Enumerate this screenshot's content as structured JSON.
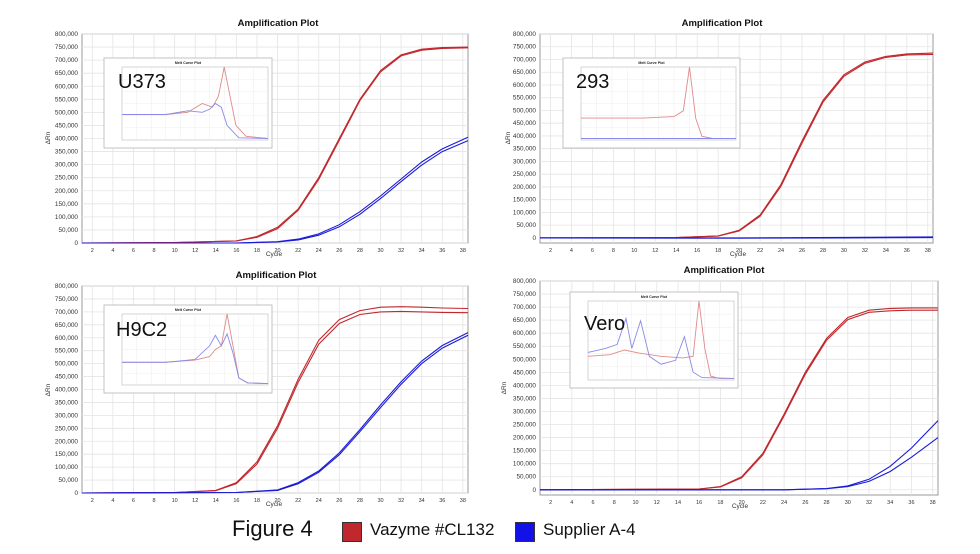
{
  "figure": {
    "label": "Figure 4",
    "legend": [
      {
        "name": "Vazyme #CL132",
        "color": "#c0282d"
      },
      {
        "name": "Supplier A-4",
        "color": "#1212e8"
      }
    ]
  },
  "chart_data": [
    {
      "type": "line",
      "title": "Amplification Plot",
      "xlabel": "Cycle",
      "ylabel": "ΔRn",
      "xlim": [
        1,
        38.5
      ],
      "ylim": [
        0,
        800000
      ],
      "xticks": [
        2,
        4,
        6,
        8,
        10,
        12,
        14,
        16,
        18,
        20,
        22,
        24,
        26,
        28,
        30,
        32,
        34,
        36,
        38
      ],
      "yticks": [
        0,
        50000,
        100000,
        150000,
        200000,
        250000,
        300000,
        350000,
        400000,
        450000,
        500000,
        550000,
        600000,
        650000,
        700000,
        750000,
        800000
      ],
      "ytick_labels": [
        "0",
        "50,000",
        "100,000",
        "150,000",
        "200,000",
        "250,000",
        "300,000",
        "350,000",
        "400,000",
        "450,000",
        "500,000",
        "550,000",
        "600,000",
        "650,000",
        "700,000",
        "750,000",
        "800,000"
      ],
      "grid": true,
      "sample_label": "U373",
      "series": [
        {
          "color_key": "red",
          "x": [
            1,
            10,
            16,
            18,
            20,
            22,
            24,
            26,
            28,
            30,
            32,
            34,
            36,
            38.5
          ],
          "y": [
            0,
            2000,
            8000,
            25000,
            60000,
            130000,
            250000,
            400000,
            550000,
            660000,
            720000,
            742000,
            748000,
            750000
          ]
        },
        {
          "color_key": "red",
          "x": [
            1,
            10,
            16,
            18,
            20,
            22,
            24,
            26,
            28,
            30,
            32,
            34,
            36,
            38.5
          ],
          "y": [
            0,
            2000,
            8000,
            22000,
            55000,
            125000,
            243000,
            393000,
            545000,
            655000,
            716000,
            738000,
            745000,
            747000
          ]
        },
        {
          "color_key": "blue",
          "x": [
            1,
            16,
            20,
            22,
            24,
            26,
            28,
            30,
            32,
            34,
            36,
            38.5
          ],
          "y": [
            0,
            0,
            5000,
            15000,
            35000,
            70000,
            120000,
            180000,
            245000,
            310000,
            360000,
            405000
          ]
        },
        {
          "color_key": "blue",
          "x": [
            1,
            16,
            20,
            22,
            24,
            26,
            28,
            30,
            32,
            34,
            36,
            38.5
          ],
          "y": [
            0,
            0,
            4000,
            12000,
            30000,
            62000,
            110000,
            170000,
            235000,
            298000,
            350000,
            392000
          ]
        }
      ],
      "inset": {
        "title": "Melt Curve Plot",
        "series": [
          {
            "color_key": "red",
            "x": [
              0,
              0.3,
              0.45,
              0.55,
              0.62,
              0.66,
              0.7,
              0.74,
              0.78,
              0.85,
              1
            ],
            "y": [
              0.35,
              0.35,
              0.38,
              0.5,
              0.45,
              0.6,
              1.0,
              0.6,
              0.2,
              0.05,
              0.02
            ]
          },
          {
            "color_key": "blue",
            "x": [
              0,
              0.3,
              0.45,
              0.55,
              0.6,
              0.64,
              0.68,
              0.72,
              0.8,
              1
            ],
            "y": [
              0.35,
              0.35,
              0.4,
              0.38,
              0.42,
              0.5,
              0.45,
              0.2,
              0.03,
              0.02
            ]
          }
        ]
      }
    },
    {
      "type": "line",
      "title": "Amplification Plot",
      "xlabel": "Cycle",
      "ylabel": "ΔRn",
      "xlim": [
        1,
        38.5
      ],
      "ylim": [
        -20000,
        800000
      ],
      "xticks": [
        2,
        4,
        6,
        8,
        10,
        12,
        14,
        16,
        18,
        20,
        22,
        24,
        26,
        28,
        30,
        32,
        34,
        36,
        38
      ],
      "yticks": [
        0,
        50000,
        100000,
        150000,
        200000,
        250000,
        300000,
        350000,
        400000,
        450000,
        500000,
        550000,
        600000,
        650000,
        700000,
        750000,
        800000
      ],
      "ytick_labels": [
        "0",
        "50,000",
        "100,000",
        "150,000",
        "200,000",
        "250,000",
        "300,000",
        "350,000",
        "400,000",
        "450,000",
        "500,000",
        "550,000",
        "600,000",
        "650,000",
        "700,000",
        "750,000",
        "800,000"
      ],
      "grid": true,
      "sample_label": "293",
      "series": [
        {
          "color_key": "red",
          "x": [
            1,
            14,
            18,
            20,
            22,
            24,
            26,
            28,
            30,
            32,
            34,
            36,
            38.5
          ],
          "y": [
            0,
            1000,
            8000,
            30000,
            90000,
            210000,
            380000,
            540000,
            640000,
            690000,
            712000,
            722000,
            725000
          ]
        },
        {
          "color_key": "red",
          "x": [
            1,
            14,
            18,
            20,
            22,
            24,
            26,
            28,
            30,
            32,
            34,
            36,
            38.5
          ],
          "y": [
            0,
            1000,
            7000,
            27000,
            85000,
            203000,
            372000,
            533000,
            634000,
            685000,
            708000,
            718000,
            720000
          ]
        },
        {
          "color_key": "blue",
          "x": [
            1,
            20,
            30,
            38.5
          ],
          "y": [
            0,
            0,
            2000,
            4000
          ]
        },
        {
          "color_key": "blue",
          "x": [
            1,
            20,
            30,
            38.5
          ],
          "y": [
            0,
            -1000,
            0,
            1000
          ]
        }
      ],
      "inset": {
        "title": "Melt Curve Plot",
        "series": [
          {
            "color_key": "red",
            "x": [
              0,
              0.4,
              0.6,
              0.66,
              0.7,
              0.74,
              0.78,
              0.85,
              1
            ],
            "y": [
              0.3,
              0.3,
              0.32,
              0.4,
              1.0,
              0.3,
              0.05,
              0.02,
              0.02
            ]
          },
          {
            "color_key": "blue",
            "x": [
              0,
              0.5,
              1
            ],
            "y": [
              0.02,
              0.02,
              0.02
            ]
          }
        ]
      }
    },
    {
      "type": "line",
      "title": "Amplification Plot",
      "xlabel": "Cycle",
      "ylabel": "ΔRn",
      "xlim": [
        1,
        38.5
      ],
      "ylim": [
        0,
        800000
      ],
      "xticks": [
        2,
        4,
        6,
        8,
        10,
        12,
        14,
        16,
        18,
        20,
        22,
        24,
        26,
        28,
        30,
        32,
        34,
        36,
        38
      ],
      "yticks": [
        0,
        50000,
        100000,
        150000,
        200000,
        250000,
        300000,
        350000,
        400000,
        450000,
        500000,
        550000,
        600000,
        650000,
        700000,
        750000,
        800000
      ],
      "ytick_labels": [
        "0",
        "50,000",
        "100,000",
        "150,000",
        "200,000",
        "250,000",
        "300,000",
        "350,000",
        "400,000",
        "450,000",
        "500,000",
        "550,000",
        "600,000",
        "650,000",
        "700,000",
        "750,000",
        "800,000"
      ],
      "grid": true,
      "sample_label": "H9C2",
      "series": [
        {
          "color_key": "red",
          "x": [
            1,
            10,
            14,
            16,
            18,
            20,
            22,
            24,
            26,
            28,
            30,
            32,
            34,
            36,
            38.5
          ],
          "y": [
            0,
            2000,
            10000,
            40000,
            120000,
            260000,
            440000,
            590000,
            670000,
            705000,
            718000,
            720000,
            718000,
            715000,
            713000
          ]
        },
        {
          "color_key": "red",
          "x": [
            1,
            10,
            14,
            16,
            18,
            20,
            22,
            24,
            26,
            28,
            30,
            32,
            34,
            36,
            38.5
          ],
          "y": [
            0,
            2000,
            9000,
            36000,
            112000,
            250000,
            428000,
            575000,
            655000,
            690000,
            700000,
            702000,
            700000,
            698000,
            697000
          ]
        },
        {
          "color_key": "blue",
          "x": [
            1,
            16,
            20,
            22,
            24,
            26,
            28,
            30,
            32,
            34,
            36,
            38.5
          ],
          "y": [
            0,
            2000,
            12000,
            40000,
            85000,
            155000,
            245000,
            340000,
            430000,
            510000,
            570000,
            620000
          ]
        },
        {
          "color_key": "blue",
          "x": [
            1,
            16,
            20,
            22,
            24,
            26,
            28,
            30,
            32,
            34,
            36,
            38.5
          ],
          "y": [
            0,
            2000,
            10000,
            36000,
            80000,
            148000,
            237000,
            330000,
            420000,
            500000,
            560000,
            610000
          ]
        }
      ],
      "inset": {
        "title": "Melt Curve Plot",
        "series": [
          {
            "color_key": "red",
            "x": [
              0,
              0.3,
              0.5,
              0.6,
              0.64,
              0.68,
              0.72,
              0.76,
              0.8,
              0.86,
              1
            ],
            "y": [
              0.32,
              0.32,
              0.35,
              0.4,
              0.5,
              0.55,
              1.0,
              0.55,
              0.1,
              0.03,
              0.02
            ]
          },
          {
            "color_key": "blue",
            "x": [
              0,
              0.3,
              0.5,
              0.6,
              0.64,
              0.68,
              0.72,
              0.76,
              0.8,
              0.86,
              1
            ],
            "y": [
              0.32,
              0.32,
              0.36,
              0.55,
              0.7,
              0.55,
              0.72,
              0.45,
              0.1,
              0.03,
              0.02
            ]
          }
        ]
      }
    },
    {
      "type": "line",
      "title": "Amplification Plot",
      "xlabel": "Cycle",
      "ylabel": "ΔRn",
      "xlim": [
        1,
        38.5
      ],
      "ylim": [
        -20000,
        800000
      ],
      "xticks": [
        2,
        4,
        6,
        8,
        10,
        12,
        14,
        16,
        18,
        20,
        22,
        24,
        26,
        28,
        30,
        32,
        34,
        36,
        38
      ],
      "yticks": [
        0,
        50000,
        100000,
        150000,
        200000,
        250000,
        300000,
        350000,
        400000,
        450000,
        500000,
        550000,
        600000,
        650000,
        700000,
        750000,
        800000
      ],
      "ytick_labels": [
        "0",
        "50,000",
        "100,000",
        "150,000",
        "200,000",
        "250,000",
        "300,000",
        "350,000",
        "400,000",
        "450,000",
        "500,000",
        "550,000",
        "600,000",
        "650,000",
        "700,000",
        "750,000",
        "800,000"
      ],
      "grid": true,
      "sample_label": "Vero",
      "series": [
        {
          "color_key": "red",
          "x": [
            1,
            16,
            18,
            20,
            22,
            24,
            26,
            28,
            30,
            32,
            34,
            36,
            38.5
          ],
          "y": [
            0,
            3000,
            12000,
            50000,
            140000,
            290000,
            450000,
            580000,
            660000,
            688000,
            695000,
            697000,
            697000
          ]
        },
        {
          "color_key": "red",
          "x": [
            1,
            16,
            18,
            20,
            22,
            24,
            26,
            28,
            30,
            32,
            34,
            36,
            38.5
          ],
          "y": [
            0,
            3000,
            11000,
            46000,
            134000,
            283000,
            443000,
            573000,
            652000,
            680000,
            686000,
            688000,
            688000
          ]
        },
        {
          "color_key": "blue",
          "x": [
            1,
            24,
            28,
            30,
            32,
            34,
            36,
            38.5
          ],
          "y": [
            0,
            0,
            5000,
            15000,
            40000,
            90000,
            160000,
            265000
          ]
        },
        {
          "color_key": "blue",
          "x": [
            1,
            24,
            28,
            30,
            32,
            34,
            36,
            38.5
          ],
          "y": [
            0,
            0,
            4000,
            12000,
            32000,
            70000,
            125000,
            200000
          ]
        }
      ],
      "inset": {
        "title": "Melt Curve Plot",
        "series": [
          {
            "color_key": "red",
            "x": [
              0,
              0.15,
              0.25,
              0.35,
              0.5,
              0.65,
              0.72,
              0.76,
              0.8,
              0.84,
              0.9,
              1
            ],
            "y": [
              0.3,
              0.32,
              0.38,
              0.34,
              0.3,
              0.28,
              0.3,
              1.0,
              0.4,
              0.05,
              0.02,
              0.02
            ]
          },
          {
            "color_key": "blue",
            "x": [
              0,
              0.12,
              0.2,
              0.26,
              0.3,
              0.36,
              0.42,
              0.5,
              0.6,
              0.66,
              0.72,
              0.78,
              1
            ],
            "y": [
              0.35,
              0.4,
              0.45,
              0.78,
              0.4,
              0.75,
              0.3,
              0.2,
              0.25,
              0.55,
              0.1,
              0.03,
              0.02
            ]
          }
        ]
      }
    }
  ]
}
